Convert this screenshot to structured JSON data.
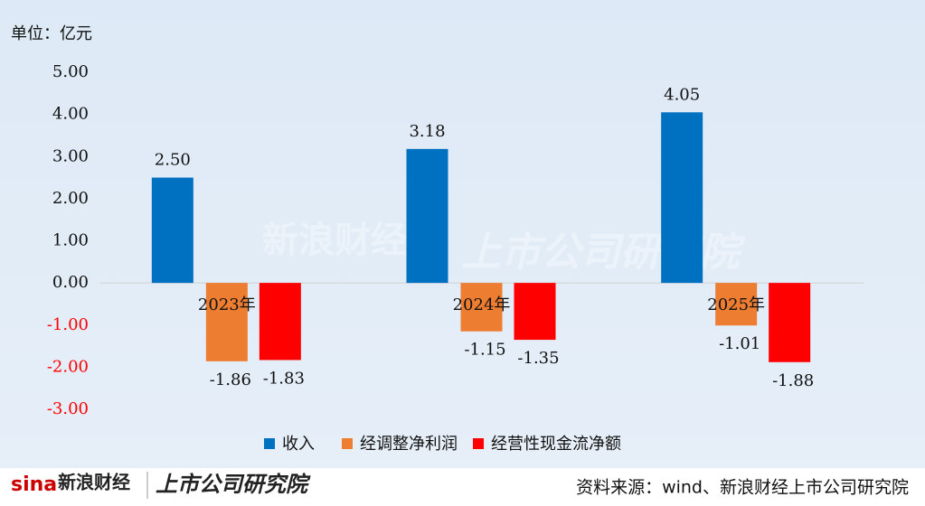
{
  "chart_data": {
    "type": "bar",
    "unit_label": "单位：亿元",
    "categories": [
      "2023年",
      "2024年",
      "2025年"
    ],
    "series": [
      {
        "name": "收入",
        "color": "#0070c0",
        "values": [
          2.5,
          3.18,
          4.05
        ],
        "value_labels": [
          "2.50",
          "3.18",
          "4.05"
        ]
      },
      {
        "name": "经调整净利润",
        "color": "#ed7d31",
        "values": [
          -1.86,
          -1.15,
          -1.01
        ],
        "value_labels": [
          "-1.86",
          "-1.15",
          "-1.01"
        ]
      },
      {
        "name": "经营性现金流净额",
        "color": "#ff0000",
        "values": [
          -1.83,
          -1.35,
          -1.88
        ],
        "value_labels": [
          "-1.83",
          "-1.35",
          "-1.88"
        ]
      }
    ],
    "ylim": [
      -3,
      5
    ],
    "yticks": [
      {
        "value": 5,
        "label": "5.00"
      },
      {
        "value": 4,
        "label": "4.00"
      },
      {
        "value": 3,
        "label": "3.00"
      },
      {
        "value": 2,
        "label": "2.00"
      },
      {
        "value": 1,
        "label": "1.00"
      },
      {
        "value": 0,
        "label": "0.00"
      },
      {
        "value": -1,
        "label": "-1.00"
      },
      {
        "value": -2,
        "label": "-2.00"
      },
      {
        "value": -3,
        "label": "-3.00"
      }
    ],
    "negative_tick_color": "#ff0000",
    "legend": "bottom",
    "source": "资料来源：wind、新浪财经上市公司研究院",
    "brand_left": "新浪财经",
    "brand_right": "上市公司研究院"
  }
}
